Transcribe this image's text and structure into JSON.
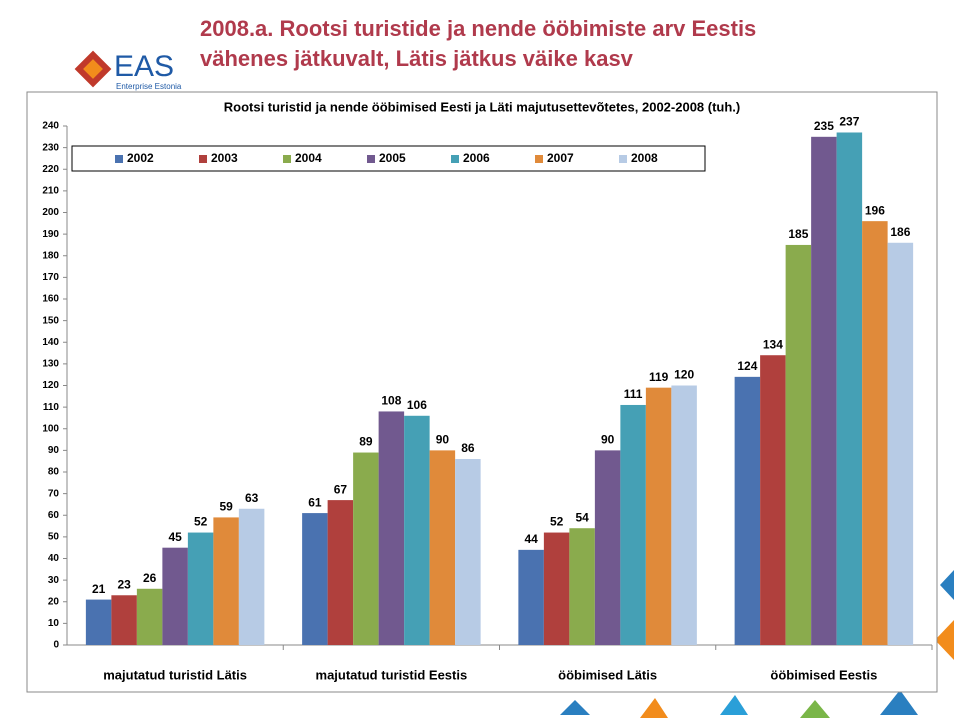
{
  "header": {
    "title_lines": [
      "2008.a. Rootsi turistide ja nende ööbimiste arv Eestis",
      "vähenes jätkuvalt, Lätis jätkus väike kasv"
    ],
    "logo": "EAS",
    "logo_sub": "Enterprise Estonia"
  },
  "chart_data": {
    "type": "bar",
    "title": "Rootsi turistid ja nende ööbimised Eesti ja Läti majutusettevõtetes, 2002-2008 (tuh.)",
    "categories": [
      "majutatud turistid Lätis",
      "majutatud turistid Eestis",
      "ööbimised Lätis",
      "ööbimised Eestis"
    ],
    "series": [
      {
        "name": "2002",
        "color": "#4a72b0",
        "values": [
          21,
          61,
          44,
          124
        ]
      },
      {
        "name": "2003",
        "color": "#b0403d",
        "values": [
          23,
          67,
          52,
          134
        ]
      },
      {
        "name": "2004",
        "color": "#8aab4d",
        "values": [
          26,
          89,
          54,
          185
        ]
      },
      {
        "name": "2005",
        "color": "#71598f",
        "values": [
          45,
          108,
          90,
          235
        ]
      },
      {
        "name": "2006",
        "color": "#45a0b5",
        "values": [
          52,
          106,
          111,
          237
        ]
      },
      {
        "name": "2007",
        "color": "#e08a3a",
        "values": [
          59,
          90,
          119,
          196
        ]
      },
      {
        "name": "2008",
        "color": "#b7cbe5",
        "values": [
          63,
          86,
          120,
          186
        ]
      }
    ],
    "ylim": [
      0,
      240
    ],
    "yticks": [
      0,
      10,
      20,
      30,
      40,
      50,
      60,
      70,
      80,
      90,
      100,
      110,
      120,
      130,
      140,
      150,
      160,
      170,
      180,
      190,
      200,
      210,
      220,
      230,
      240
    ],
    "legend": "top"
  }
}
